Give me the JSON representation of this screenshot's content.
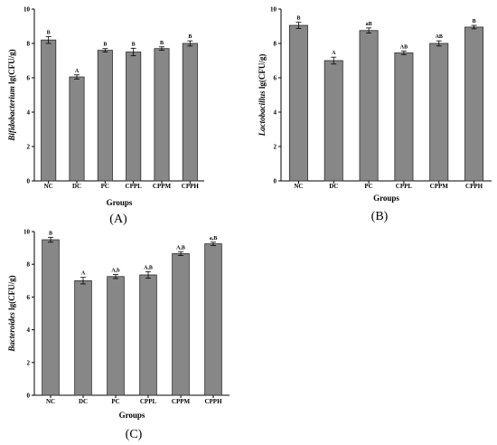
{
  "colors": {
    "bar": "#878787",
    "bar_stroke": "#2b2b2b",
    "axis": "#000000"
  },
  "chart_data": [
    {
      "type": "bar",
      "panel_label": "(A)",
      "xlabel": "Groups",
      "ylabel_italic": "Bifidobacterium",
      "ylabel_unit": " lg(CFU/g)",
      "ylim": [
        0,
        10
      ],
      "yticks": [
        "0",
        "2",
        "4",
        "6",
        "8",
        "10"
      ],
      "categories": [
        "NC",
        "DC",
        "PC",
        "CPPL",
        "CPPM",
        "CPPH"
      ],
      "values": [
        8.2,
        6.05,
        7.6,
        7.5,
        7.7,
        8.0
      ],
      "errors": [
        0.2,
        0.12,
        0.1,
        0.22,
        0.1,
        0.15
      ],
      "significance": [
        "B",
        "A",
        "B",
        "B",
        "B",
        "B"
      ]
    },
    {
      "type": "bar",
      "panel_label": "(B)",
      "xlabel": "Groups",
      "ylabel_italic": "Lactobacillus",
      "ylabel_unit": " lg(CFU/g)",
      "ylim": [
        0,
        10
      ],
      "yticks": [
        "0",
        "2",
        "4",
        "6",
        "8",
        "10"
      ],
      "categories": [
        "NC",
        "DC",
        "PC",
        "CPPL",
        "CPPM",
        "CPPH"
      ],
      "values": [
        9.05,
        7.0,
        8.75,
        7.45,
        8.0,
        8.95
      ],
      "errors": [
        0.18,
        0.2,
        0.15,
        0.1,
        0.15,
        0.1
      ],
      "significance": [
        "B",
        "A",
        "aB",
        "AB",
        "AB",
        "B"
      ]
    },
    {
      "type": "bar",
      "panel_label": "(C)",
      "xlabel": "Groups",
      "ylabel_italic": "Bacteroides",
      "ylabel_unit": " lg(CFU/g)",
      "ylim": [
        0,
        10
      ],
      "yticks": [
        "0",
        "2",
        "4",
        "6",
        "8",
        "10"
      ],
      "categories": [
        "NC",
        "DC",
        "PC",
        "CPPL",
        "CPPM",
        "CPPH"
      ],
      "values": [
        9.5,
        7.0,
        7.25,
        7.35,
        8.65,
        9.25
      ],
      "errors": [
        0.15,
        0.2,
        0.12,
        0.2,
        0.12,
        0.1
      ],
      "significance": [
        "B",
        "A",
        "A,b",
        "A,B",
        "A,B",
        "a,B"
      ]
    }
  ]
}
